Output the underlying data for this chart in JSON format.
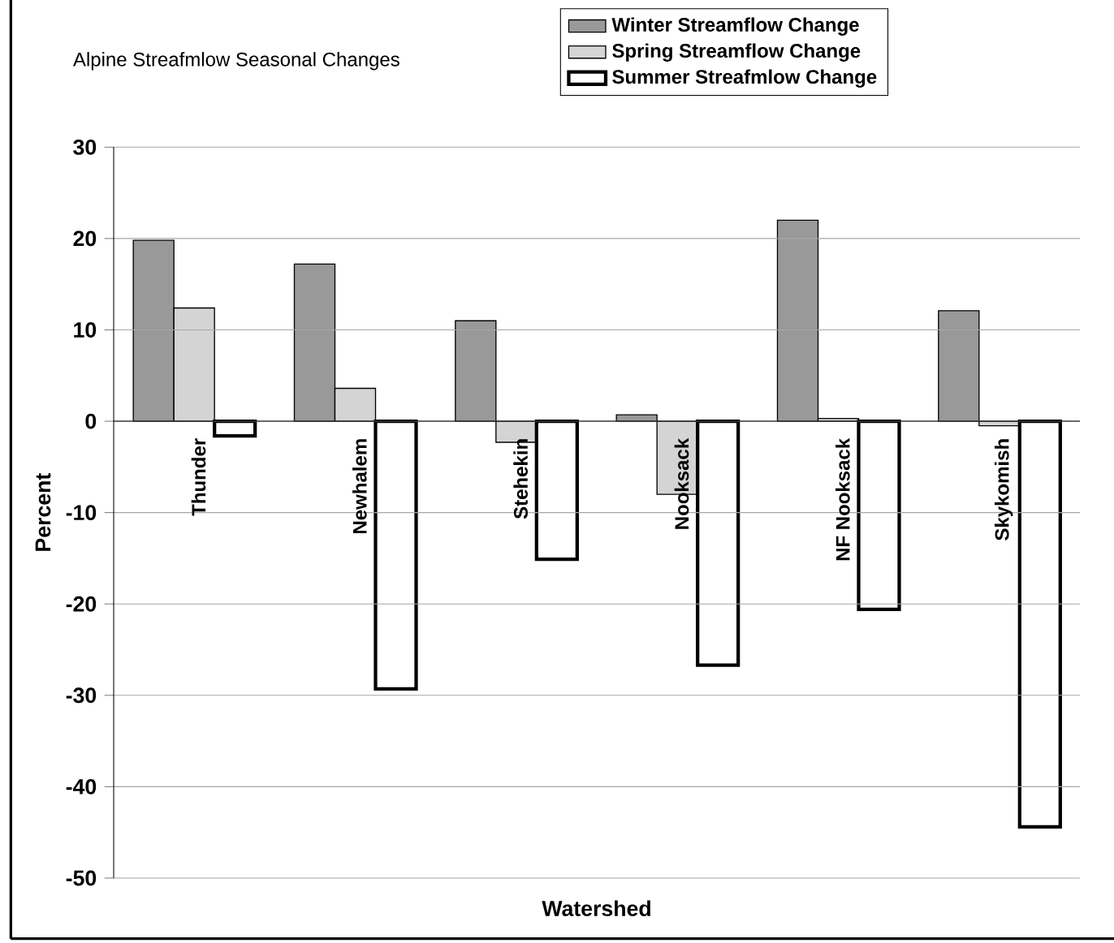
{
  "chart_data": {
    "type": "bar",
    "title": "Alpine Streafmlow Seasonal Changes",
    "xlabel": "Watershed",
    "ylabel": "Percent",
    "categories": [
      "Thunder",
      "Newhalem",
      "Stehekin",
      "Nooksack",
      "NF Nooksack",
      "Skykomish"
    ],
    "series": [
      {
        "name": "Winter Streamflow Change",
        "color": "#999999",
        "values": [
          19.8,
          17.2,
          11,
          0.7,
          22,
          12.1
        ]
      },
      {
        "name": "Spring Streamflow Change",
        "color": "#d4d4d4",
        "values": [
          12.4,
          3.6,
          -2.3,
          -8,
          0.3,
          -0.5
        ]
      },
      {
        "name": "Summer Streafmlow Change",
        "color": "#ffffff",
        "values": [
          -1.6,
          -29.3,
          -15.1,
          -26.7,
          -20.6,
          -44.4
        ]
      }
    ],
    "ylim": [
      -50,
      30
    ],
    "yticks": [
      -50,
      -40,
      -30,
      -20,
      -10,
      0,
      10,
      20,
      30
    ],
    "grid": "y",
    "legend": "top"
  }
}
